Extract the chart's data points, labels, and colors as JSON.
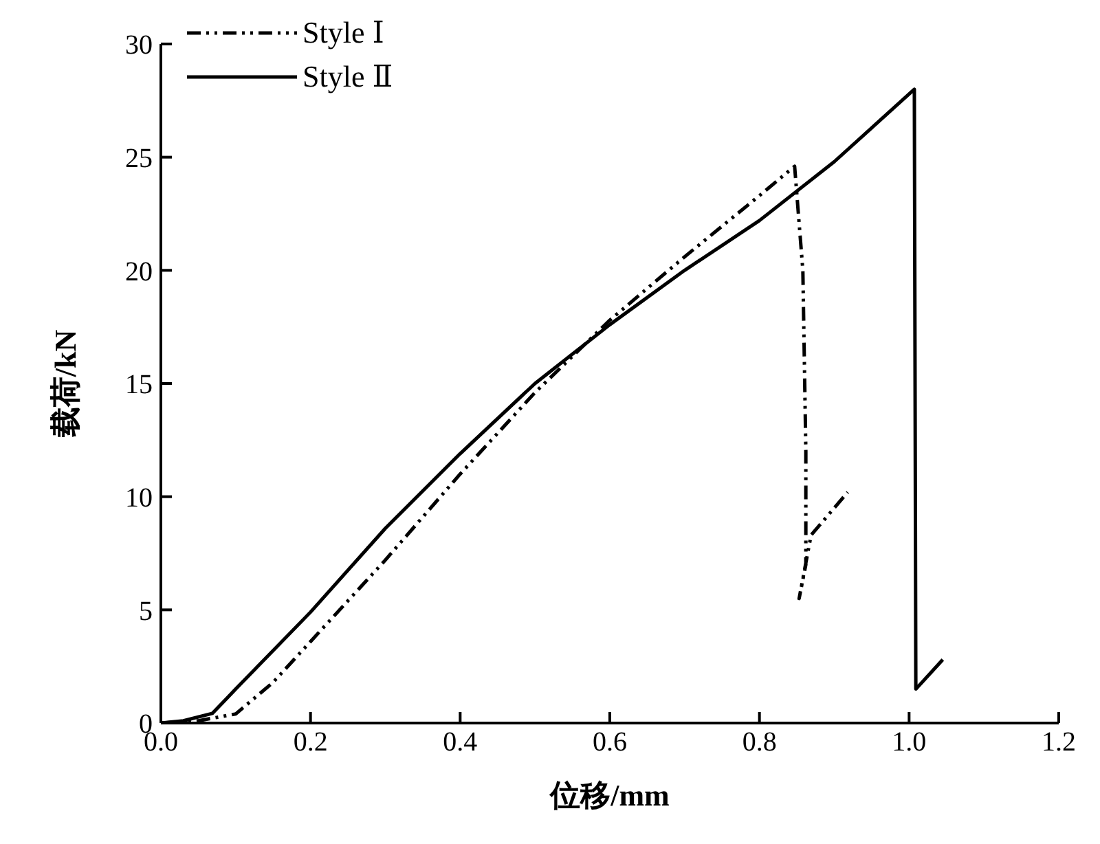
{
  "chart_data": {
    "type": "line",
    "xlabel": "位移/mm",
    "ylabel": "载荷/kN",
    "xlim": [
      0,
      1.2
    ],
    "xticks": [
      {
        "value": 0,
        "label": "0.0"
      },
      0.2,
      0.4,
      0.6,
      0.8,
      {
        "value": 1,
        "label": "1.0"
      },
      1.2
    ],
    "ylim": [
      0,
      30
    ],
    "yticks": [
      0,
      5,
      10,
      15,
      20,
      25,
      30
    ],
    "grid": false,
    "legend": "top left",
    "marker": "none",
    "series": [
      {
        "name": "Style Ⅰ",
        "color": "#000000",
        "line_style": "dashed",
        "x": [
          0,
          0.05,
          0.1,
          0.15,
          0.2,
          0.3,
          0.4,
          0.5,
          0.6,
          0.7,
          0.8,
          0.847,
          0.858,
          0.862,
          0.862,
          0.853,
          0.869,
          0.918
        ],
        "values": [
          0,
          0.1,
          0.4,
          1.8,
          3.6,
          7.2,
          11.0,
          14.6,
          17.8,
          20.6,
          23.3,
          24.6,
          20,
          12,
          7,
          5.5,
          8.3,
          10.2
        ]
      },
      {
        "name": "Style Ⅱ",
        "color": "#000000",
        "line_style": "solid",
        "x": [
          0,
          0.03,
          0.069,
          0.1,
          0.2,
          0.3,
          0.4,
          0.5,
          0.6,
          0.7,
          0.8,
          0.9,
          1.007,
          1.009,
          1.045
        ],
        "values": [
          0,
          0.1,
          0.43,
          1.5,
          4.9,
          8.6,
          11.9,
          15.0,
          17.6,
          20.0,
          22.2,
          24.8,
          28.0,
          1.5,
          2.8
        ]
      }
    ]
  }
}
